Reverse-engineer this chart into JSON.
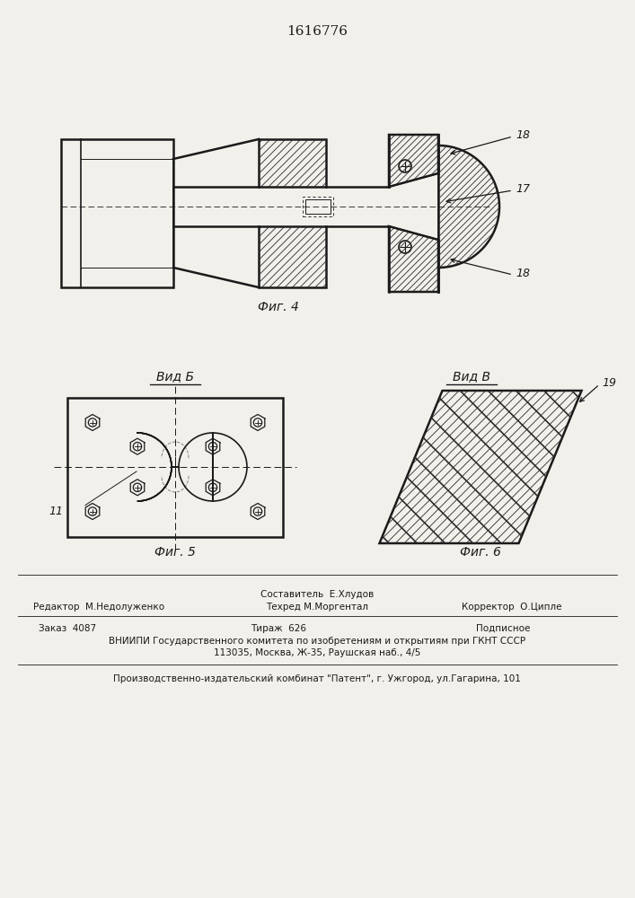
{
  "title": "1616776",
  "background_color": "#f2f0eb",
  "fig4_label": "Фиг. 4",
  "fig5_label": "Фиг. 5",
  "fig6_label": "Фиг. 6",
  "vid_b_label": "Вид Б",
  "vid_v_label": "Вид В",
  "label_18a": "18",
  "label_17": "17",
  "label_18b": "18",
  "label_19": "19",
  "label_11": "11",
  "hatch_color": "#2a2a2a",
  "line_color": "#1a1a1a"
}
